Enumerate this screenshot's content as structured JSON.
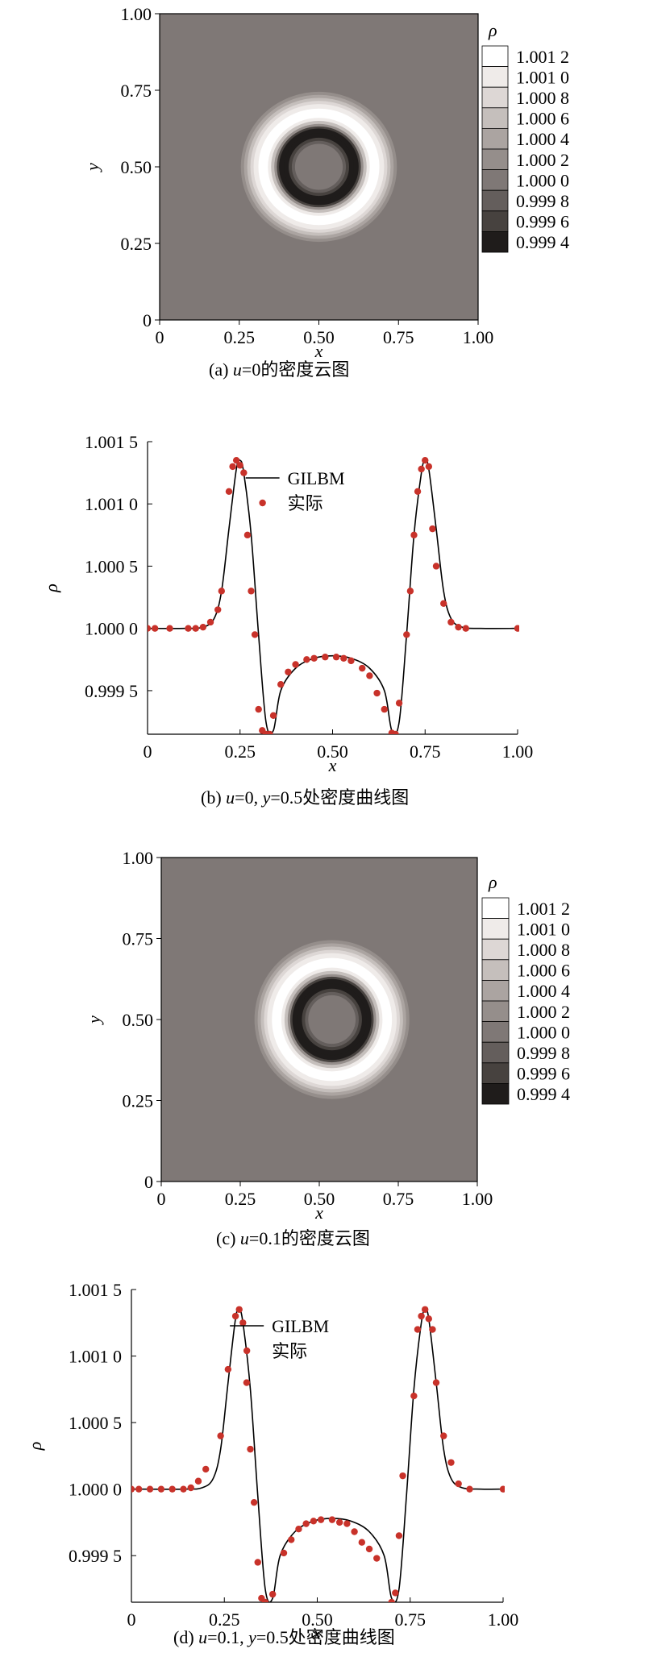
{
  "chart_data": [
    {
      "id": "a",
      "type": "heatmap",
      "caption": "(a) u=0的密度云图",
      "caption_var": "u",
      "caption_rest": "=0的密度云图",
      "caption_prefix": "(a) ",
      "xlabel": "x",
      "ylabel": "y",
      "xlim": [
        0,
        1
      ],
      "ylim": [
        0,
        1
      ],
      "xticks": [
        "0",
        "0.25",
        "0.50",
        "0.75",
        "1.00"
      ],
      "yticks": [
        "0",
        "0.25",
        "0.50",
        "0.75",
        "1.00"
      ],
      "center": [
        0.5,
        0.5
      ],
      "colorbar_title": "ρ",
      "colorbar_levels": [
        "1.001 2",
        "1.001 0",
        "1.000 8",
        "1.000 6",
        "1.000 4",
        "1.000 2",
        "1.000 0",
        "0.999 8",
        "0.999 6",
        "0.999 4"
      ],
      "colorbar_colors": [
        "#ffffff",
        "#efebe9",
        "#ddd7d5",
        "#c5bfbc",
        "#aba4a1",
        "#958e8b",
        "#7f7876",
        "#645e5c",
        "#47423f",
        "#1f1c1b"
      ],
      "background_color": "#7f7876"
    },
    {
      "id": "b",
      "type": "line",
      "caption_prefix": "(b) ",
      "caption_var1": "u",
      "caption_mid": "=0, ",
      "caption_var2": "y",
      "caption_rest": "=0.5处密度曲线图",
      "xlabel": "x",
      "ylabel": "ρ",
      "xlim": [
        0,
        1
      ],
      "ylim": [
        0.99915,
        1.0015
      ],
      "xticks": [
        0,
        0.25,
        0.5,
        0.75,
        1.0
      ],
      "xtick_labels": [
        "0",
        "0.25",
        "0.50",
        "0.75",
        "1.00"
      ],
      "yticks": [
        0.9995,
        1.0,
        1.0005,
        1.001,
        1.0015
      ],
      "ytick_labels": [
        "0.999 5",
        "1.000 0",
        "1.000 5",
        "1.001 0",
        "1.001 5"
      ],
      "legend": [
        "GILBM",
        "实际"
      ],
      "line_x": [
        0.0,
        0.1,
        0.15,
        0.18,
        0.2,
        0.22,
        0.24,
        0.25,
        0.26,
        0.28,
        0.3,
        0.32,
        0.34,
        0.36,
        0.4,
        0.45,
        0.5,
        0.55,
        0.6,
        0.64,
        0.66,
        0.68,
        0.7,
        0.72,
        0.74,
        0.75,
        0.76,
        0.78,
        0.8,
        0.82,
        0.85,
        0.9,
        1.0
      ],
      "line_y": [
        1.0,
        1.0,
        1.00001,
        1.00008,
        1.0003,
        1.0008,
        1.00128,
        1.00135,
        1.00125,
        1.00075,
        0.99995,
        0.99925,
        0.99918,
        0.9995,
        0.99968,
        0.99976,
        0.99978,
        0.99976,
        0.99968,
        0.9995,
        0.99918,
        0.99925,
        0.99995,
        1.00075,
        1.00125,
        1.00135,
        1.00128,
        1.0008,
        1.0003,
        1.00008,
        1.00001,
        1.0,
        1.0
      ],
      "points_x": [
        0.0,
        0.02,
        0.06,
        0.11,
        0.13,
        0.15,
        0.17,
        0.19,
        0.2,
        0.22,
        0.23,
        0.24,
        0.25,
        0.26,
        0.27,
        0.28,
        0.29,
        0.3,
        0.31,
        0.32,
        0.33,
        0.34,
        0.36,
        0.38,
        0.4,
        0.43,
        0.45,
        0.48,
        0.51,
        0.53,
        0.55,
        0.58,
        0.6,
        0.62,
        0.64,
        0.66,
        0.67,
        0.68,
        0.7,
        0.71,
        0.72,
        0.73,
        0.74,
        0.75,
        0.76,
        0.77,
        0.78,
        0.8,
        0.82,
        0.84,
        0.86,
        1.0
      ],
      "points_y": [
        1.0,
        1.0,
        1.0,
        1.0,
        1.0,
        1.00001,
        1.00005,
        1.00015,
        1.0003,
        1.0011,
        1.0013,
        1.00135,
        1.00131,
        1.00125,
        1.00075,
        1.0003,
        0.99995,
        0.99935,
        0.99918,
        0.99915,
        0.99915,
        0.9993,
        0.99955,
        0.99965,
        0.99971,
        0.99975,
        0.99976,
        0.99977,
        0.99977,
        0.99976,
        0.99974,
        0.99968,
        0.99962,
        0.99948,
        0.99935,
        0.99916,
        0.99915,
        0.9994,
        0.99995,
        1.0003,
        1.00075,
        1.0011,
        1.00128,
        1.00135,
        1.0013,
        1.0008,
        1.0005,
        1.0002,
        1.00005,
        1.00001,
        1.0,
        1.0
      ]
    },
    {
      "id": "c",
      "type": "heatmap",
      "caption_prefix": "(c) ",
      "caption_var": "u",
      "caption_rest": "=0.1的密度云图",
      "xlabel": "x",
      "ylabel": "y",
      "xlim": [
        0,
        1
      ],
      "ylim": [
        0,
        1
      ],
      "xticks": [
        "0",
        "0.25",
        "0.50",
        "0.75",
        "1.00"
      ],
      "yticks": [
        "0",
        "0.25",
        "0.50",
        "0.75",
        "1.00"
      ],
      "center": [
        0.54,
        0.5
      ],
      "colorbar_title": "ρ",
      "colorbar_levels": [
        "1.001 2",
        "1.001 0",
        "1.000 8",
        "1.000 6",
        "1.000 4",
        "1.000 2",
        "1.000 0",
        "0.999 8",
        "0.999 6",
        "0.999 4"
      ],
      "colorbar_colors": [
        "#ffffff",
        "#efebe9",
        "#ddd7d5",
        "#c5bfbc",
        "#aba4a1",
        "#958e8b",
        "#7f7876",
        "#645e5c",
        "#47423f",
        "#1f1c1b"
      ],
      "background_color": "#7f7876"
    },
    {
      "id": "d",
      "type": "line",
      "caption_prefix": "(d) ",
      "caption_var1": "u",
      "caption_mid": "=0.1, ",
      "caption_var2": "y",
      "caption_rest": "=0.5处密度曲线图",
      "xlabel": "x",
      "ylabel": "ρ",
      "xlim": [
        0,
        1
      ],
      "ylim": [
        0.99915,
        1.0015
      ],
      "xticks": [
        0,
        0.25,
        0.5,
        0.75,
        1.0
      ],
      "xtick_labels": [
        "0",
        "0.25",
        "0.50",
        "0.75",
        "1.00"
      ],
      "yticks": [
        0.9995,
        1.0,
        1.0005,
        1.001,
        1.0015
      ],
      "ytick_labels": [
        "0.999 5",
        "1.000 0",
        "1.000 5",
        "1.001 0",
        "1.001 5"
      ],
      "legend": [
        "GILBM",
        "实际"
      ],
      "line_x": [
        0.0,
        0.14,
        0.19,
        0.22,
        0.24,
        0.26,
        0.28,
        0.29,
        0.3,
        0.32,
        0.34,
        0.36,
        0.38,
        0.4,
        0.44,
        0.49,
        0.54,
        0.59,
        0.64,
        0.68,
        0.7,
        0.72,
        0.74,
        0.76,
        0.78,
        0.79,
        0.8,
        0.82,
        0.84,
        0.86,
        0.89,
        0.94,
        1.0
      ],
      "line_y": [
        1.0,
        1.0,
        1.00001,
        1.00008,
        1.0003,
        1.0008,
        1.00128,
        1.00135,
        1.00125,
        1.00075,
        0.99995,
        0.99925,
        0.99918,
        0.9995,
        0.99968,
        0.99976,
        0.99978,
        0.99976,
        0.99968,
        0.9995,
        0.99918,
        0.99925,
        0.99995,
        1.00075,
        1.00125,
        1.00135,
        1.00128,
        1.0008,
        1.0003,
        1.00008,
        1.00001,
        1.0,
        1.0
      ],
      "points_x": [
        0.0,
        0.02,
        0.05,
        0.08,
        0.11,
        0.14,
        0.16,
        0.18,
        0.2,
        0.24,
        0.26,
        0.28,
        0.29,
        0.3,
        0.31,
        0.32,
        0.33,
        0.34,
        0.35,
        0.36,
        0.38,
        0.41,
        0.43,
        0.45,
        0.47,
        0.49,
        0.51,
        0.54,
        0.56,
        0.58,
        0.6,
        0.62,
        0.64,
        0.66,
        0.7,
        0.71,
        0.72,
        0.73,
        0.76,
        0.77,
        0.78,
        0.79,
        0.8,
        0.81,
        0.82,
        0.84,
        0.86,
        0.88,
        0.91,
        1.0
      ],
      "points_y": [
        1.0,
        1.0,
        1.0,
        1.0,
        1.0,
        1.0,
        1.00001,
        1.00006,
        1.00015,
        1.0004,
        1.0009,
        1.0013,
        1.00135,
        1.00125,
        1.0008,
        1.0003,
        0.9999,
        0.99945,
        0.99918,
        0.99915,
        0.99921,
        0.99952,
        0.99962,
        0.9997,
        0.99974,
        0.99976,
        0.99977,
        0.99977,
        0.99975,
        0.99974,
        0.99968,
        0.9996,
        0.99955,
        0.99948,
        0.99915,
        0.99922,
        0.99965,
        1.0001,
        1.0007,
        1.0012,
        1.0013,
        1.00135,
        1.00128,
        1.0012,
        1.0008,
        1.0004,
        1.0002,
        1.00004,
        1.0,
        1.0
      ]
    }
  ]
}
